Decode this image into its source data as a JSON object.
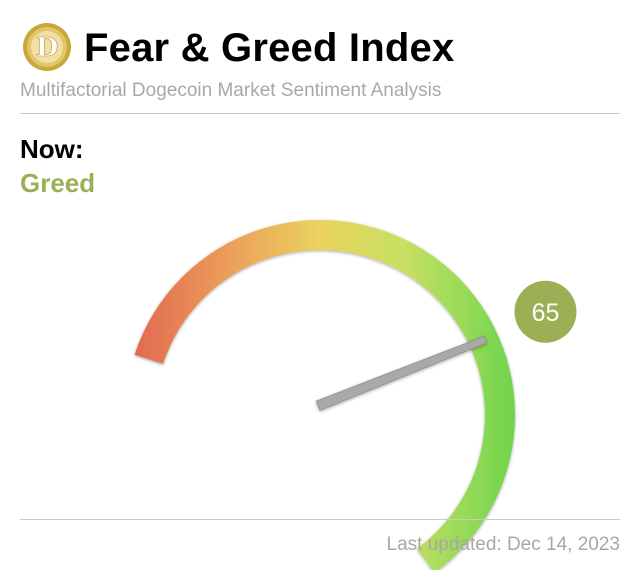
{
  "header": {
    "title": "Fear & Greed Index",
    "subtitle": "Multifactorial Dogecoin Market Sentiment Analysis",
    "logo_icon": "dogecoin-logo-icon",
    "logo_letter": "D"
  },
  "current": {
    "label": "Now:",
    "classification": "Greed",
    "value": 65,
    "value_text": "65"
  },
  "gauge": {
    "min": 0,
    "max": 100,
    "colors": {
      "fear": "#e0644f",
      "neutral": "#e9d45c",
      "greed": "#6fd44c",
      "badge": "#9bb055",
      "needle": "#a9a9a9",
      "label": "#9bb055"
    }
  },
  "footer": {
    "last_updated": "Last updated: Dec 14, 2023"
  }
}
